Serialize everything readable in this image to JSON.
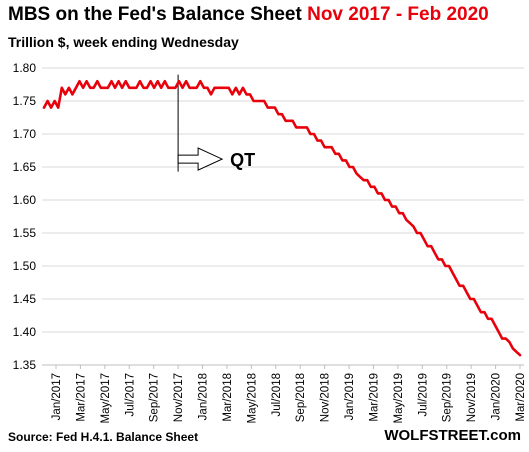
{
  "header": {
    "title_main": "MBS on the Fed's Balance Sheet",
    "title_highlight": "Nov 2017 - Feb 2020",
    "subtitle": "Trillion $, week ending Wednesday"
  },
  "footer": {
    "source": "Source: Fed H.4.1. Balance Sheet",
    "brand": "WOLFSTREET.com"
  },
  "colors": {
    "series": "#e8000b",
    "title_highlight": "#e8000b",
    "grid": "#d9d9d9"
  },
  "annotation": {
    "label": "QT",
    "at": "Nov/2017"
  },
  "chart_data": {
    "type": "line",
    "title": "MBS on the Fed's Balance Sheet Nov 2017 - Feb 2020",
    "subtitle": "Trillion $, week ending Wednesday",
    "ylim": [
      1.35,
      1.8
    ],
    "yticks": [
      "1.35",
      "1.40",
      "1.45",
      "1.50",
      "1.55",
      "1.60",
      "1.65",
      "1.70",
      "1.75",
      "1.80"
    ],
    "xticks": [
      "Jan/2017",
      "Mar/2017",
      "May/2017",
      "Jul/2017",
      "Sep/2017",
      "Nov/2017",
      "Jan/2018",
      "Mar/2018",
      "May/2018",
      "Jul/2018",
      "Sep/2018",
      "Nov/2018",
      "Jan/2019",
      "Mar/2019",
      "May/2019",
      "Jul/2019",
      "Sep/2019",
      "Nov/2019",
      "Jan/2020",
      "Mar/2020"
    ],
    "grid": "horizontal",
    "series": [
      {
        "values": [
          1.74,
          1.75,
          1.74,
          1.75,
          1.74,
          1.77,
          1.76,
          1.77,
          1.76,
          1.77,
          1.78,
          1.77,
          1.78,
          1.77,
          1.77,
          1.78,
          1.77,
          1.77,
          1.77,
          1.78,
          1.77,
          1.78,
          1.77,
          1.78,
          1.77,
          1.77,
          1.77,
          1.78,
          1.77,
          1.77,
          1.78,
          1.77,
          1.78,
          1.77,
          1.78,
          1.77,
          1.77,
          1.77,
          1.78,
          1.77,
          1.78,
          1.77,
          1.77,
          1.77,
          1.78,
          1.77,
          1.77,
          1.76,
          1.77,
          1.77,
          1.77,
          1.77,
          1.77,
          1.76,
          1.77,
          1.76,
          1.77,
          1.76,
          1.76,
          1.75,
          1.75,
          1.75,
          1.75,
          1.74,
          1.74,
          1.74,
          1.73,
          1.73,
          1.72,
          1.72,
          1.72,
          1.71,
          1.71,
          1.71,
          1.71,
          1.7,
          1.7,
          1.69,
          1.69,
          1.68,
          1.68,
          1.68,
          1.67,
          1.67,
          1.66,
          1.66,
          1.65,
          1.65,
          1.64,
          1.635,
          1.63,
          1.63,
          1.62,
          1.62,
          1.61,
          1.61,
          1.6,
          1.6,
          1.59,
          1.59,
          1.58,
          1.58,
          1.57,
          1.565,
          1.56,
          1.55,
          1.55,
          1.54,
          1.53,
          1.53,
          1.52,
          1.51,
          1.51,
          1.5,
          1.5,
          1.49,
          1.48,
          1.47,
          1.47,
          1.46,
          1.45,
          1.45,
          1.44,
          1.43,
          1.43,
          1.42,
          1.42,
          1.41,
          1.4,
          1.39,
          1.39,
          1.385,
          1.375,
          1.37,
          1.365
        ]
      }
    ]
  }
}
